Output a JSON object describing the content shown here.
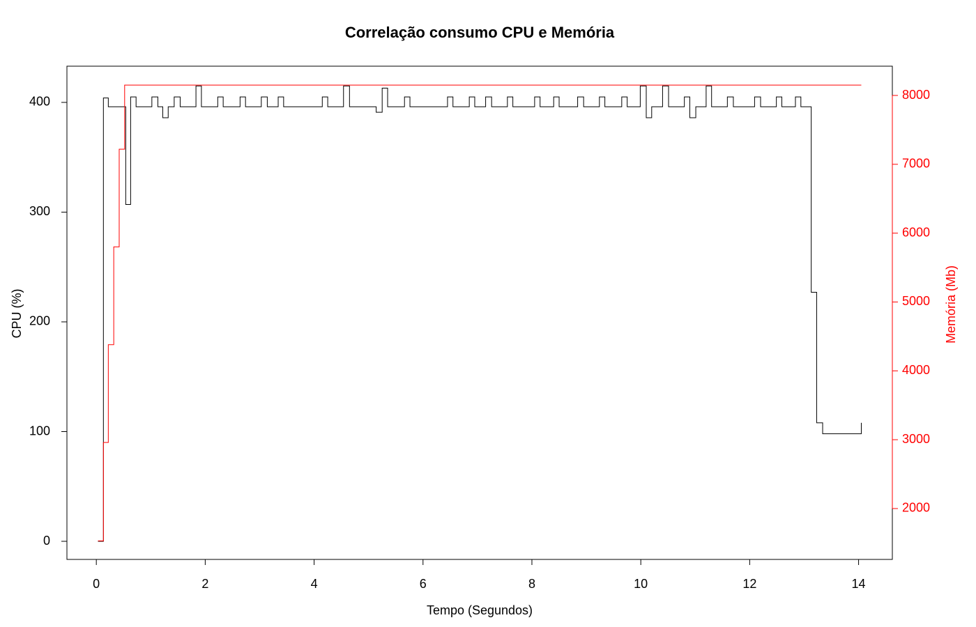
{
  "chart_data": {
    "type": "step",
    "title": "Correlação consumo CPU e Memória",
    "xlabel": "Tempo (Segundos)",
    "ylabel": "CPU (%)",
    "y2label": "Memória (Mb)",
    "xlim": [
      -0.54,
      14.62
    ],
    "xticks": [
      0,
      2,
      4,
      6,
      8,
      10,
      12,
      14
    ],
    "ylim": [
      -16.5,
      433
    ],
    "yticks": [
      0,
      100,
      200,
      300,
      400
    ],
    "y2lim": [
      1261,
      8425
    ],
    "y2ticks": [
      2000,
      3000,
      4000,
      5000,
      6000,
      7000,
      8000
    ],
    "series": [
      {
        "name": "CPU (%)",
        "color": "#000000",
        "x": [
          0.03,
          0.13,
          0.22,
          0.54,
          0.63,
          0.73,
          1.02,
          1.13,
          1.22,
          1.32,
          1.43,
          1.54,
          1.83,
          1.93,
          2.23,
          2.33,
          2.64,
          2.74,
          3.03,
          3.14,
          3.34,
          3.44,
          4.15,
          4.25,
          4.54,
          4.65,
          5.14,
          5.25,
          5.35,
          5.66,
          5.76,
          6.45,
          6.55,
          6.85,
          6.95,
          7.15,
          7.26,
          7.55,
          7.65,
          8.05,
          8.15,
          8.4,
          8.5,
          8.84,
          8.95,
          9.24,
          9.34,
          9.65,
          9.75,
          9.99,
          10.1,
          10.2,
          10.4,
          10.51,
          10.8,
          10.9,
          11.01,
          11.2,
          11.3,
          11.59,
          11.7,
          12.09,
          12.2,
          12.49,
          12.59,
          12.84,
          12.94,
          13.13,
          13.23,
          13.34,
          14.05
        ],
        "values": [
          0,
          404,
          396,
          307,
          405,
          396,
          405,
          396,
          386,
          396,
          405,
          396,
          415,
          396,
          405,
          396,
          405,
          396,
          405,
          396,
          405,
          396,
          405,
          396,
          415,
          396,
          391,
          413,
          396,
          405,
          396,
          405,
          396,
          405,
          396,
          405,
          396,
          405,
          396,
          405,
          396,
          405,
          396,
          405,
          396,
          405,
          396,
          405,
          396,
          415,
          386,
          396,
          415,
          396,
          405,
          386,
          396,
          415,
          396,
          405,
          396,
          405,
          396,
          405,
          396,
          405,
          396,
          227,
          108,
          98,
          108
        ]
      },
      {
        "name": "Memória (Mb)",
        "color": "#ff0000",
        "axis": "y2",
        "x": [
          0.03,
          0.13,
          0.22,
          0.32,
          0.42,
          0.52,
          14.05
        ],
        "values": [
          1530,
          2960,
          4380,
          5800,
          7220,
          8150,
          8150
        ]
      }
    ]
  }
}
